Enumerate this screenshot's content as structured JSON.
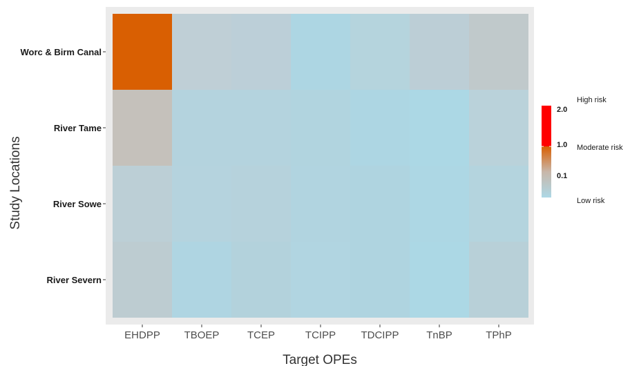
{
  "chart_data": {
    "type": "heatmap",
    "xlabel": "Target OPEs",
    "ylabel": "Study Locations",
    "x_categories": [
      "EHDPP",
      "TBOEP",
      "TCEP",
      "TCIPP",
      "TDCIPP",
      "TnBP",
      "TPhP"
    ],
    "y_categories": [
      "Worc & Birm Canal",
      "River Tame",
      "River Sowe",
      "River Severn"
    ],
    "cells": [
      {
        "y": "Worc & Birm Canal",
        "x": "EHDPP",
        "color": "#d95f02"
      },
      {
        "y": "Worc & Birm Canal",
        "x": "TBOEP",
        "color": "#bfcfd6"
      },
      {
        "y": "Worc & Birm Canal",
        "x": "TCEP",
        "color": "#bccfd8"
      },
      {
        "y": "Worc & Birm Canal",
        "x": "TCIPP",
        "color": "#add6e3"
      },
      {
        "y": "Worc & Birm Canal",
        "x": "TDCIPP",
        "color": "#b5d4dd"
      },
      {
        "y": "Worc & Birm Canal",
        "x": "TnBP",
        "color": "#bcced6"
      },
      {
        "y": "Worc & Birm Canal",
        "x": "TPhP",
        "color": "#c0c9cb"
      },
      {
        "y": "River Tame",
        "x": "EHDPP",
        "color": "#c5c1bb"
      },
      {
        "y": "River Tame",
        "x": "TBOEP",
        "color": "#b4d3de"
      },
      {
        "y": "River Tame",
        "x": "TCEP",
        "color": "#b4d3de"
      },
      {
        "y": "River Tame",
        "x": "TCIPP",
        "color": "#b1d4df"
      },
      {
        "y": "River Tame",
        "x": "TDCIPP",
        "color": "#add6e3"
      },
      {
        "y": "River Tame",
        "x": "TnBP",
        "color": "#acd8e5"
      },
      {
        "y": "River Tame",
        "x": "TPhP",
        "color": "#bad2da"
      },
      {
        "y": "River Sowe",
        "x": "EHDPP",
        "color": "#bccfd6"
      },
      {
        "y": "River Sowe",
        "x": "TBOEP",
        "color": "#b5d3de"
      },
      {
        "y": "River Sowe",
        "x": "TCEP",
        "color": "#b6d2dc"
      },
      {
        "y": "River Sowe",
        "x": "TCIPP",
        "color": "#b1d4e0"
      },
      {
        "y": "River Sowe",
        "x": "TDCIPP",
        "color": "#afd4e0"
      },
      {
        "y": "River Sowe",
        "x": "TnBP",
        "color": "#add7e4"
      },
      {
        "y": "River Sowe",
        "x": "TPhP",
        "color": "#b4d4de"
      },
      {
        "y": "River Severn",
        "x": "EHDPP",
        "color": "#bdccd1"
      },
      {
        "y": "River Severn",
        "x": "TBOEP",
        "color": "#afd5e2"
      },
      {
        "y": "River Severn",
        "x": "TCEP",
        "color": "#b3d2dc"
      },
      {
        "y": "River Severn",
        "x": "TCIPP",
        "color": "#b1d5e1"
      },
      {
        "y": "River Severn",
        "x": "TDCIPP",
        "color": "#afd4e0"
      },
      {
        "y": "River Severn",
        "x": "TnBP",
        "color": "#acd8e5"
      },
      {
        "y": "River Severn",
        "x": "TPhP",
        "color": "#b8d0d8"
      }
    ],
    "legend": {
      "placement": "right",
      "ticks": [
        "2.0",
        "1.0",
        "0.1"
      ],
      "categories": [
        "High risk",
        "Moderate risk",
        "Low risk"
      ],
      "colors": {
        "high": "#ff0000",
        "moderate": "#d95f02",
        "low": "#add8e6"
      }
    },
    "panel_background": "#ebebeb"
  }
}
